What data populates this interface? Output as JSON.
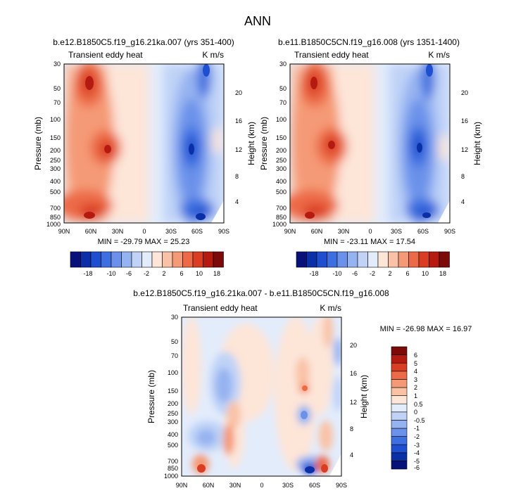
{
  "figure": {
    "title": "ANN"
  },
  "chart_data": [
    {
      "type": "heatmap",
      "title": "b.e12.B1850C5.f19_g16.21ka.007 (yrs 351-400)",
      "left_subtitle": "Transient eddy heat",
      "right_subtitle": "K m/s",
      "ylabel_left": "Pressure (mb)",
      "ylabel_right": "Height (km)",
      "x_ticks": [
        "90N",
        "60N",
        "30N",
        "0",
        "30S",
        "60S",
        "90S"
      ],
      "y_ticks_pressure": [
        "30",
        "50",
        "70",
        "100",
        "150",
        "200",
        "250",
        "300",
        "400",
        "500",
        "700",
        "850",
        "1000"
      ],
      "y_ticks_height": [
        "20",
        "16",
        "12",
        "8",
        "4"
      ],
      "stats": "MIN = -29.79  MAX = 25.23",
      "colorbar_orientation": "horizontal",
      "colorbar_levels": [
        -18,
        -14,
        -10,
        -8,
        -6,
        -4,
        -2,
        0,
        2,
        4,
        6,
        8,
        10,
        14,
        18
      ],
      "colorbar_labels": [
        "-18",
        "-10",
        "-6",
        "-2",
        "2",
        "6",
        "10",
        "18"
      ]
    },
    {
      "type": "heatmap",
      "title": "b.e11.B1850C5CN.f19_g16.008 (yrs 1351-1400)",
      "left_subtitle": "Transient eddy heat",
      "right_subtitle": "K m/s",
      "ylabel_left": "Pressure (mb)",
      "ylabel_right": "Height (km)",
      "x_ticks": [
        "90N",
        "60N",
        "30N",
        "0",
        "30S",
        "60S",
        "90S"
      ],
      "y_ticks_pressure": [
        "30",
        "50",
        "70",
        "100",
        "150",
        "200",
        "250",
        "300",
        "400",
        "500",
        "700",
        "850",
        "1000"
      ],
      "y_ticks_height": [
        "20",
        "16",
        "12",
        "8",
        "4"
      ],
      "stats": "MIN = -23.11  MAX = 17.54",
      "colorbar_orientation": "horizontal",
      "colorbar_levels": [
        -18,
        -14,
        -10,
        -8,
        -6,
        -4,
        -2,
        0,
        2,
        4,
        6,
        8,
        10,
        14,
        18
      ],
      "colorbar_labels": [
        "-18",
        "-10",
        "-6",
        "-2",
        "2",
        "6",
        "10",
        "18"
      ]
    },
    {
      "type": "heatmap",
      "title": "b.e12.B1850C5.f19_g16.21ka.007 - b.e11.B1850C5CN.f19_g16.008",
      "left_subtitle": "Transient eddy heat",
      "right_subtitle": "K m/s",
      "ylabel_left": "Pressure (mb)",
      "ylabel_right": "Height (km)",
      "x_ticks": [
        "90N",
        "60N",
        "30N",
        "0",
        "30S",
        "60S",
        "90S"
      ],
      "y_ticks_pressure": [
        "30",
        "50",
        "70",
        "100",
        "150",
        "200",
        "250",
        "300",
        "400",
        "500",
        "700",
        "850",
        "1000"
      ],
      "y_ticks_height": [
        "20",
        "16",
        "12",
        "8",
        "4"
      ],
      "stats": "MIN = -26.98  MAX = 16.97",
      "colorbar_orientation": "vertical",
      "colorbar_levels": [
        -6,
        -5,
        -4,
        -3,
        -2,
        -1,
        -0.5,
        0,
        0.5,
        1,
        2,
        3,
        4,
        5,
        6
      ],
      "colorbar_labels": [
        "6",
        "5",
        "4",
        "3",
        "2",
        "1",
        "0.5",
        "0",
        "-0.5",
        "-1",
        "-2",
        "-3",
        "-4",
        "-5",
        "-6"
      ]
    }
  ],
  "palette": {
    "colors": [
      "#08107a",
      "#0a2fa6",
      "#1f4fd0",
      "#3e6fe0",
      "#6b91ea",
      "#96b3f1",
      "#c0d3f7",
      "#e3ecfb",
      "#fde5d8",
      "#f9c2a6",
      "#f59a76",
      "#ec6a47",
      "#d93d22",
      "#b51a10",
      "#7b0a08"
    ]
  }
}
